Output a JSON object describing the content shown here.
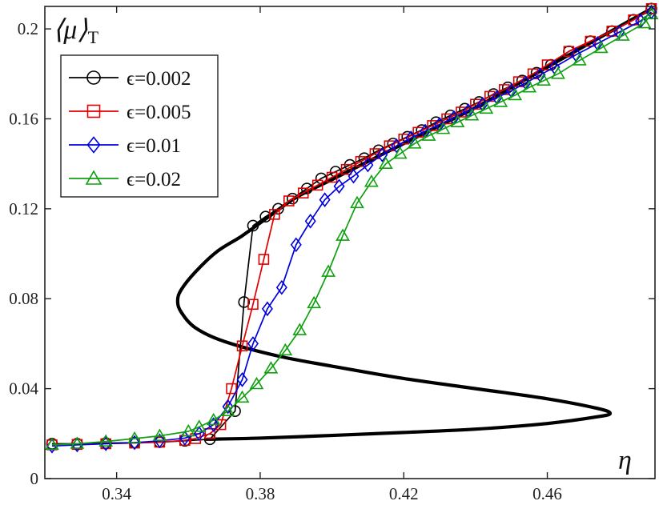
{
  "chart_data": {
    "type": "line",
    "ylabel": "⟨μ⟩",
    "ylabel_subscript": "T",
    "xlabel": "η",
    "xlim": [
      0.32,
      0.49
    ],
    "ylim": [
      0,
      0.21
    ],
    "xticks": [
      "0.34",
      "0.38",
      "0.42",
      "0.46"
    ],
    "xtick_values": [
      0.34,
      0.38,
      0.42,
      0.46
    ],
    "yticks": [
      "0",
      "0.04",
      "0.08",
      "0.12",
      "0.16",
      "0.2"
    ],
    "ytick_values": [
      0,
      0.04,
      0.08,
      0.12,
      0.16,
      0.2
    ],
    "grid": false,
    "legend_position": "top-left",
    "curve": {
      "color": "#000000",
      "points": [
        [
          0.365,
          0.0175
        ],
        [
          0.38,
          0.018
        ],
        [
          0.4,
          0.0192
        ],
        [
          0.42,
          0.0205
        ],
        [
          0.44,
          0.022
        ],
        [
          0.46,
          0.0245
        ],
        [
          0.474,
          0.0275
        ],
        [
          0.4775,
          0.029
        ],
        [
          0.474,
          0.0312
        ],
        [
          0.46,
          0.0355
        ],
        [
          0.44,
          0.04
        ],
        [
          0.42,
          0.0445
        ],
        [
          0.4,
          0.05
        ],
        [
          0.385,
          0.0545
        ],
        [
          0.37,
          0.061
        ],
        [
          0.362,
          0.067
        ],
        [
          0.358,
          0.074
        ],
        [
          0.357,
          0.079
        ],
        [
          0.358,
          0.084
        ],
        [
          0.362,
          0.092
        ],
        [
          0.368,
          0.101
        ],
        [
          0.375,
          0.108
        ],
        [
          0.382,
          0.116
        ],
        [
          0.39,
          0.125
        ],
        [
          0.4,
          0.133
        ],
        [
          0.41,
          0.141
        ],
        [
          0.42,
          0.149
        ],
        [
          0.43,
          0.157
        ],
        [
          0.44,
          0.165
        ],
        [
          0.45,
          0.174
        ],
        [
          0.46,
          0.183
        ],
        [
          0.47,
          0.192
        ],
        [
          0.48,
          0.201
        ],
        [
          0.489,
          0.209
        ]
      ]
    },
    "series": [
      {
        "name": "ϵ=0.002",
        "color": "#000000",
        "marker": "circle",
        "x": [
          0.322,
          0.329,
          0.337,
          0.345,
          0.352,
          0.359,
          0.366,
          0.373,
          0.3755,
          0.378,
          0.3815,
          0.385,
          0.389,
          0.393,
          0.397,
          0.401,
          0.405,
          0.409,
          0.413,
          0.417,
          0.421,
          0.425,
          0.429,
          0.433,
          0.437,
          0.441,
          0.445,
          0.449,
          0.453,
          0.457,
          0.461,
          0.466,
          0.472,
          0.478,
          0.484,
          0.489
        ],
        "y": [
          0.0155,
          0.0155,
          0.0158,
          0.016,
          0.0162,
          0.0168,
          0.0175,
          0.03,
          0.0785,
          0.1125,
          0.1165,
          0.12,
          0.1245,
          0.129,
          0.1335,
          0.1365,
          0.1395,
          0.1425,
          0.146,
          0.149,
          0.152,
          0.155,
          0.1585,
          0.1615,
          0.1645,
          0.1675,
          0.171,
          0.174,
          0.177,
          0.1805,
          0.184,
          0.19,
          0.1945,
          0.199,
          0.204,
          0.209
        ]
      },
      {
        "name": "ϵ=0.005",
        "color": "#e00000",
        "marker": "square",
        "x": [
          0.322,
          0.329,
          0.337,
          0.345,
          0.352,
          0.359,
          0.362,
          0.366,
          0.369,
          0.372,
          0.375,
          0.378,
          0.381,
          0.384,
          0.388,
          0.392,
          0.396,
          0.4,
          0.404,
          0.408,
          0.412,
          0.416,
          0.42,
          0.424,
          0.428,
          0.432,
          0.436,
          0.44,
          0.444,
          0.448,
          0.452,
          0.456,
          0.46,
          0.466,
          0.472,
          0.478,
          0.484,
          0.489
        ],
        "y": [
          0.015,
          0.0152,
          0.0155,
          0.0158,
          0.0162,
          0.017,
          0.0178,
          0.02,
          0.024,
          0.04,
          0.059,
          0.0775,
          0.0975,
          0.1175,
          0.1235,
          0.127,
          0.1305,
          0.134,
          0.1375,
          0.141,
          0.1445,
          0.148,
          0.151,
          0.154,
          0.157,
          0.16,
          0.163,
          0.1665,
          0.17,
          0.173,
          0.1765,
          0.18,
          0.184,
          0.19,
          0.1945,
          0.199,
          0.204,
          0.209
        ]
      },
      {
        "name": "ϵ=0.01",
        "color": "#0000e0",
        "marker": "diamond",
        "x": [
          0.322,
          0.329,
          0.337,
          0.345,
          0.352,
          0.359,
          0.363,
          0.367,
          0.371,
          0.375,
          0.378,
          0.382,
          0.386,
          0.39,
          0.394,
          0.398,
          0.402,
          0.406,
          0.41,
          0.414,
          0.418,
          0.422,
          0.426,
          0.43,
          0.434,
          0.438,
          0.442,
          0.446,
          0.45,
          0.454,
          0.458,
          0.462,
          0.468,
          0.474,
          0.48,
          0.486,
          0.489
        ],
        "y": [
          0.0145,
          0.015,
          0.0155,
          0.016,
          0.0168,
          0.018,
          0.02,
          0.024,
          0.032,
          0.044,
          0.06,
          0.0755,
          0.085,
          0.104,
          0.1145,
          0.124,
          0.13,
          0.1345,
          0.1395,
          0.144,
          0.148,
          0.1515,
          0.1545,
          0.1575,
          0.1605,
          0.1635,
          0.1665,
          0.1695,
          0.1725,
          0.176,
          0.1795,
          0.183,
          0.1885,
          0.1935,
          0.1985,
          0.2035,
          0.2075
        ]
      },
      {
        "name": "ϵ=0.02",
        "color": "#10a010",
        "marker": "triangle",
        "x": [
          0.322,
          0.329,
          0.337,
          0.345,
          0.352,
          0.36,
          0.363,
          0.367,
          0.371,
          0.375,
          0.379,
          0.383,
          0.387,
          0.391,
          0.395,
          0.399,
          0.403,
          0.407,
          0.411,
          0.415,
          0.419,
          0.423,
          0.427,
          0.431,
          0.435,
          0.439,
          0.443,
          0.447,
          0.451,
          0.455,
          0.459,
          0.463,
          0.469,
          0.475,
          0.481,
          0.487,
          0.489
        ],
        "y": [
          0.015,
          0.0155,
          0.0165,
          0.0178,
          0.019,
          0.021,
          0.023,
          0.026,
          0.03,
          0.036,
          0.042,
          0.049,
          0.057,
          0.066,
          0.078,
          0.092,
          0.108,
          0.1225,
          0.132,
          0.14,
          0.1445,
          0.149,
          0.1525,
          0.1555,
          0.1585,
          0.1615,
          0.1645,
          0.1675,
          0.1705,
          0.174,
          0.177,
          0.18,
          0.186,
          0.1915,
          0.197,
          0.2025,
          0.2065
        ]
      }
    ]
  }
}
